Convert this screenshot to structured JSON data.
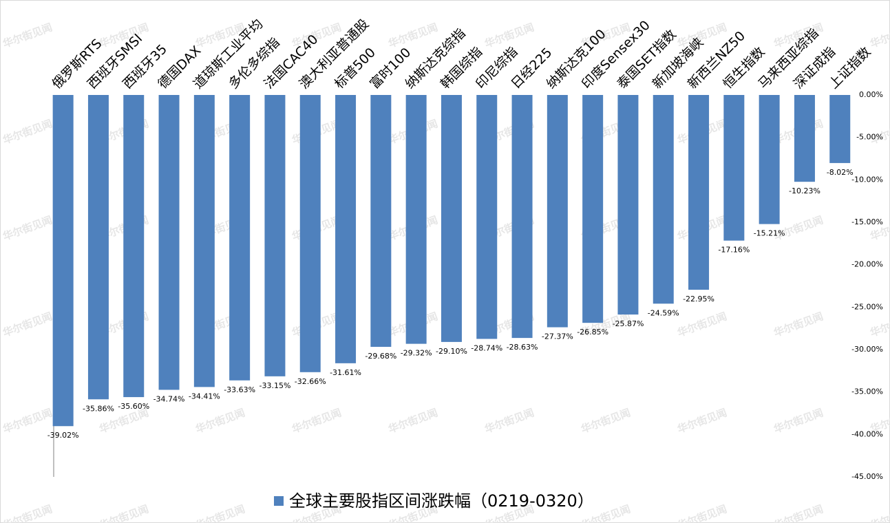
{
  "watermark": "华尔街见闻",
  "chart_data": {
    "type": "bar",
    "categories": [
      "俄罗斯RTS",
      "西班牙SMSI",
      "西班牙35",
      "德国DAX",
      "道琼斯工业平均",
      "多伦多综指",
      "法国CAC40",
      "澳大利亚普通股",
      "标普500",
      "富时100",
      "纳斯达克综指",
      "韩国综指",
      "印尼综指",
      "日经225",
      "纳斯达克100",
      "印度Sensex30",
      "泰国SET指数",
      "新加坡海峡",
      "新西兰NZ50",
      "恒生指数",
      "马来西亚综指",
      "深证成指",
      "上证指数"
    ],
    "series": [
      {
        "name": "全球主要股指区间涨跌幅（0219-0320）",
        "color": "#4f81bd",
        "values": [
          -39.02,
          -35.86,
          -35.6,
          -34.74,
          -34.41,
          -33.63,
          -33.15,
          -32.66,
          -31.61,
          -29.68,
          -29.32,
          -29.1,
          -28.74,
          -28.63,
          -27.37,
          -26.85,
          -25.87,
          -24.59,
          -22.95,
          -17.16,
          -15.21,
          -10.23,
          -8.02
        ],
        "value_labels": [
          "-39.02%",
          "-35.86%",
          "-35.60%",
          "-34.74%",
          "-34.41%",
          "-33.63%",
          "-33.15%",
          "-32.66%",
          "-31.61%",
          "-29.68%",
          "-29.32%",
          "-29.10%",
          "-28.74%",
          "-28.63%",
          "-27.37%",
          "-26.85%",
          "-25.87%",
          "-24.59%",
          "-22.95%",
          "-17.16%",
          "-15.21%",
          "-10.23%",
          "-8.02%"
        ]
      }
    ],
    "ylim": [
      -45,
      0
    ],
    "yticks": [
      {
        "value": 0,
        "label": "0.00%"
      },
      {
        "value": -5,
        "label": "-5.00%"
      },
      {
        "value": -10,
        "label": "-10.00%"
      },
      {
        "value": -15,
        "label": "-15.00%"
      },
      {
        "value": -20,
        "label": "-20.00%"
      },
      {
        "value": -25,
        "label": "-25.00%"
      },
      {
        "value": -30,
        "label": "-30.00%"
      },
      {
        "value": -35,
        "label": "-35.00%"
      },
      {
        "value": -40,
        "label": "-40.00%"
      },
      {
        "value": -45,
        "label": "-45.00%"
      }
    ],
    "grid": false,
    "legend": "bottom"
  }
}
